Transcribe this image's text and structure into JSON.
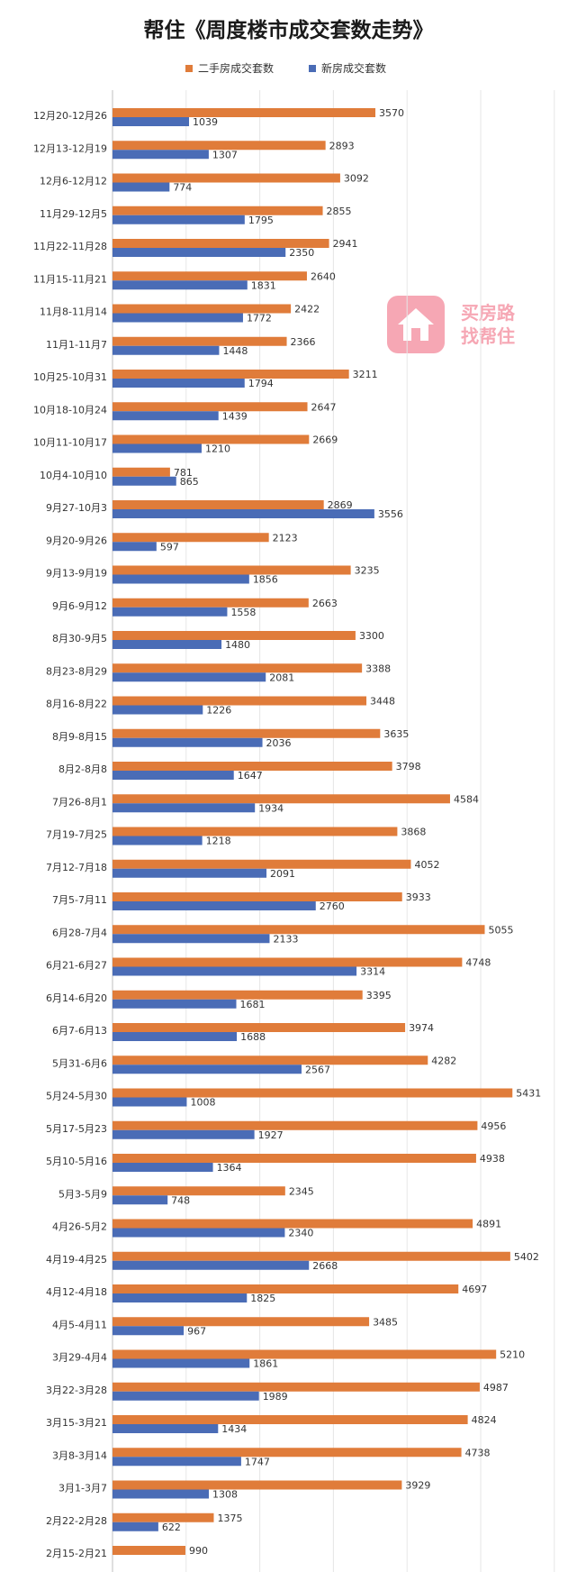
{
  "title": "帮住《周度楼市成交套数走势》",
  "watermark": {
    "line1": "买房路",
    "line2": "找帮住"
  },
  "chart_data": {
    "type": "bar",
    "orientation": "horizontal",
    "title": "帮住《周度楼市成交套数走势》",
    "legend_position": "top",
    "grid": true,
    "xlim": [
      0,
      6000
    ],
    "categories": [
      "12月20-12月26",
      "12月13-12月19",
      "12月6-12月12",
      "11月29-12月5",
      "11月22-11月28",
      "11月15-11月21",
      "11月8-11月14",
      "11月1-11月7",
      "10月25-10月31",
      "10月18-10月24",
      "10月11-10月17",
      "10月4-10月10",
      "9月27-10月3",
      "9月20-9月26",
      "9月13-9月19",
      "9月6-9月12",
      "8月30-9月5",
      "8月23-8月29",
      "8月16-8月22",
      "8月9-8月15",
      "8月2-8月8",
      "7月26-8月1",
      "7月19-7月25",
      "7月12-7月18",
      "7月5-7月11",
      "6月28-7月4",
      "6月21-6月27",
      "6月14-6月20",
      "6月7-6月13",
      "5月31-6月6",
      "5月24-5月30",
      "5月17-5月23",
      "5月10-5月16",
      "5月3-5月9",
      "4月26-5月2",
      "4月19-4月25",
      "4月12-4月18",
      "4月5-4月11",
      "3月29-4月4",
      "3月22-3月28",
      "3月15-3月21",
      "3月8-3月14",
      "3月1-3月7",
      "2月22-2月28",
      "2月15-2月21"
    ],
    "series": [
      {
        "name": "二手房成交套数",
        "color": "#e07c3a",
        "values": [
          3570,
          2893,
          3092,
          2855,
          2941,
          2640,
          2422,
          2366,
          3211,
          2647,
          2669,
          781,
          2869,
          2123,
          3235,
          2663,
          3300,
          3388,
          3448,
          3635,
          3798,
          4584,
          3868,
          4052,
          3933,
          5055,
          4748,
          3395,
          3974,
          4282,
          5431,
          4956,
          4938,
          2345,
          4891,
          5402,
          4697,
          3485,
          5210,
          4987,
          4824,
          4738,
          3929,
          1375,
          990
        ]
      },
      {
        "name": "新房成交套数",
        "color": "#4a6cb6",
        "values": [
          1039,
          1307,
          774,
          1795,
          2350,
          1831,
          1772,
          1448,
          1794,
          1439,
          1210,
          865,
          3556,
          597,
          1856,
          1558,
          1480,
          2081,
          1226,
          2036,
          1647,
          1934,
          1218,
          2091,
          2760,
          2133,
          3314,
          1681,
          1688,
          2567,
          1008,
          1927,
          1364,
          748,
          2340,
          2668,
          1825,
          967,
          1861,
          1989,
          1434,
          1747,
          1308,
          622,
          null
        ]
      }
    ]
  }
}
